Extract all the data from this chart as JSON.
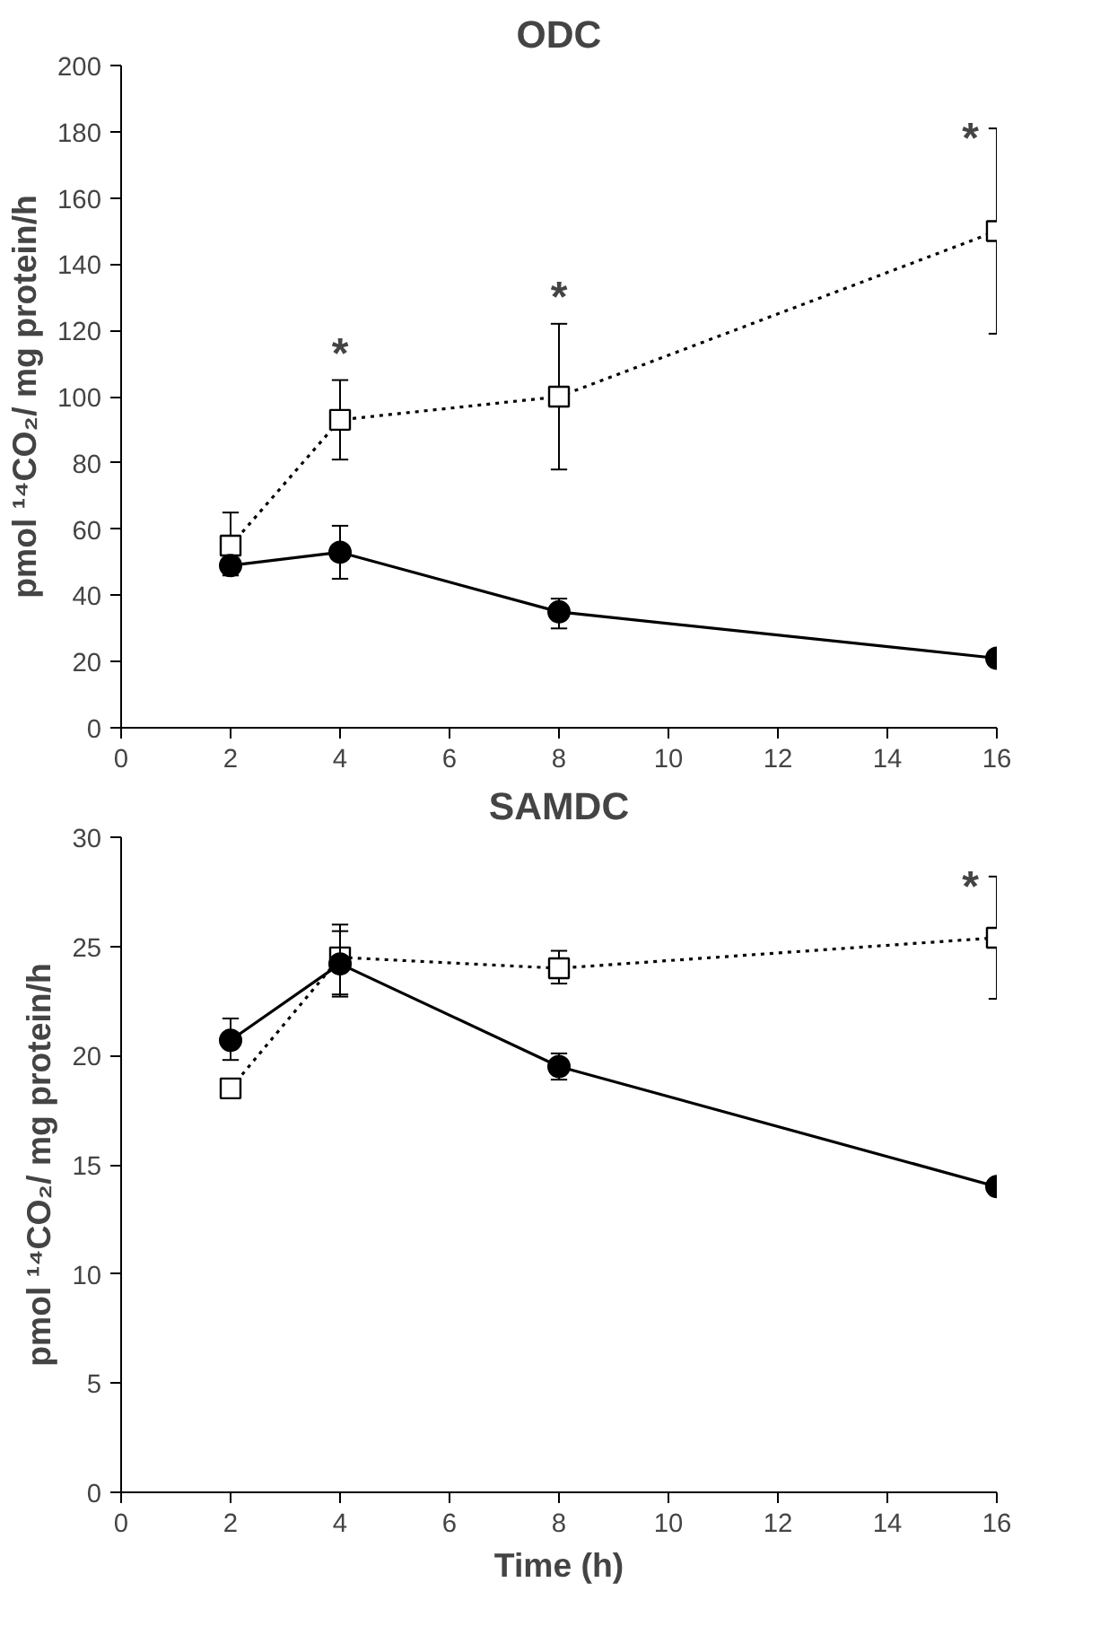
{
  "chart_data": [
    {
      "type": "line",
      "title": "ODC",
      "ylabel": "pmol ¹⁴CO₂/ mg protein/h",
      "x": [
        2,
        4,
        8,
        16
      ],
      "xlim": [
        0,
        16
      ],
      "xticks": [
        0,
        2,
        4,
        6,
        8,
        10,
        12,
        14,
        16
      ],
      "ylim": [
        0,
        200
      ],
      "yticks": [
        0,
        20,
        40,
        60,
        80,
        100,
        120,
        140,
        160,
        180,
        200
      ],
      "grid": false,
      "series": [
        {
          "color": "#000000",
          "marker": "square",
          "line_style": "dotted",
          "values": [
            55,
            93,
            100,
            150
          ],
          "errors": [
            [
              46,
              65
            ],
            [
              81,
              105
            ],
            [
              78,
              122
            ],
            [
              119,
              181
            ]
          ]
        },
        {
          "color": "#000000",
          "marker": "circle",
          "line_style": "solid",
          "values": [
            49,
            53,
            35,
            21
          ],
          "errors": [
            null,
            [
              45,
              61
            ],
            [
              30,
              39
            ],
            null
          ]
        }
      ],
      "annotations": [
        "*",
        "*",
        "*"
      ]
    },
    {
      "type": "line",
      "title": "SAMDC",
      "ylabel": "pmol ¹⁴CO₂/ mg protein/h",
      "xlabel": "Time (h)",
      "x": [
        2,
        4,
        8,
        16
      ],
      "xlim": [
        0,
        16
      ],
      "xticks": [
        0,
        2,
        4,
        6,
        8,
        10,
        12,
        14,
        16
      ],
      "ylim": [
        0,
        30
      ],
      "yticks": [
        0,
        5,
        10,
        15,
        20,
        25,
        30
      ],
      "grid": false,
      "series": [
        {
          "color": "#000000",
          "marker": "square",
          "line_style": "dotted",
          "values": [
            18.5,
            24.5,
            24,
            25.4
          ],
          "errors": [
            null,
            [
              22.7,
              26
            ],
            [
              23.3,
              24.8
            ],
            [
              22.6,
              28.2
            ]
          ]
        },
        {
          "color": "#000000",
          "marker": "circle",
          "line_style": "solid",
          "values": [
            20.7,
            24.2,
            19.5,
            14
          ],
          "errors": [
            [
              19.8,
              21.7
            ],
            [
              22.8,
              25.7
            ],
            [
              18.9,
              20.1
            ],
            null
          ]
        }
      ],
      "annotations": [
        "*"
      ]
    }
  ]
}
